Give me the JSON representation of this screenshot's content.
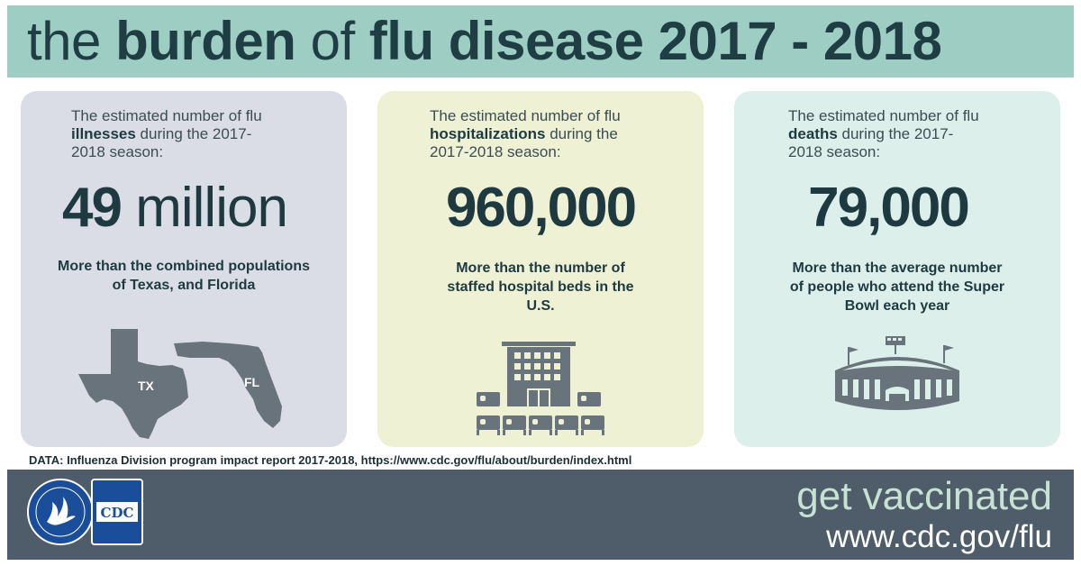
{
  "header": {
    "title_part1": "the ",
    "title_part2": "burden",
    "title_part3": " of ",
    "title_part4": "flu disease 2017 - 2018"
  },
  "panels": {
    "illness": {
      "intro_before": "The estimated number of flu ",
      "intro_bold": "illnesses",
      "intro_after": " during the 2017-2018 season:",
      "number": "49",
      "unit": " million",
      "comparison": "More than the combined populations of Texas, and Florida",
      "map_label_tx": "TX",
      "map_label_fl": "FL"
    },
    "hospitalizations": {
      "intro_before": "The estimated number of flu ",
      "intro_bold": "hospitalizations",
      "intro_after": " during the 2017-2018 season:",
      "number": "960,000",
      "comparison": "More than the number of staffed hospital beds in the U.S."
    },
    "deaths": {
      "intro_before": "The estimated number of flu ",
      "intro_bold": "deaths",
      "intro_after": " during the 2017-2018 season:",
      "number": "79,000",
      "comparison": "More than the average number of people who attend the Super Bowl each year"
    }
  },
  "source": "DATA: Influenza Division program impact report 2017-2018, https://www.cdc.gov/flu/about/burden/index.html",
  "footer": {
    "cta_part1": "get ",
    "cta_part2": "vaccinated",
    "url": "www.cdc.gov/flu",
    "cdc_logo_text": "CDC"
  },
  "icons": {
    "map": "texas-florida-map-icon",
    "hospital": "hospital-beds-icon",
    "stadium": "stadium-icon",
    "hhs": "hhs-eagle-logo",
    "cdc": "cdc-logo"
  },
  "colors": {
    "header_bg": "#9dcdc3",
    "panel_illness": "#dbdde6",
    "panel_hosp": "#eef1d4",
    "panel_death": "#dcefeb",
    "footer_bg": "#4f5d6a",
    "icon_gray": "#68737c",
    "text_dark": "#1e3a40"
  }
}
